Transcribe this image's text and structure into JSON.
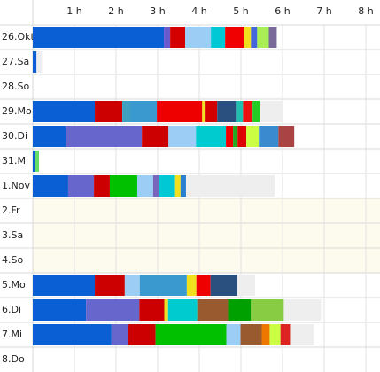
{
  "chart_data": {
    "type": "stacked-timeline",
    "xlim": [
      0,
      8.34
    ],
    "xticks": [
      {
        "value": 1,
        "label": "1 h"
      },
      {
        "value": 2,
        "label": "2 h"
      },
      {
        "value": 3,
        "label": "3 h"
      },
      {
        "value": 4,
        "label": "4 h"
      },
      {
        "value": 5,
        "label": "5 h"
      },
      {
        "value": 6,
        "label": "6 h"
      },
      {
        "value": 7,
        "label": "7 h"
      },
      {
        "value": 8,
        "label": "8 h"
      }
    ],
    "grid": true,
    "rows": [
      {
        "label": "26.Okt",
        "highlight": true,
        "segments": [
          {
            "value": 3.15,
            "color": "#0a5fd4"
          },
          {
            "value": 0.15,
            "color": "#6a5acd"
          },
          {
            "value": 0.36,
            "color": "#d40000"
          },
          {
            "value": 0.62,
            "color": "#9ccdf5"
          },
          {
            "value": 0.34,
            "color": "#00c8d4"
          },
          {
            "value": 0.45,
            "color": "#f00000"
          },
          {
            "value": 0.17,
            "color": "#f0e020"
          },
          {
            "value": 0.15,
            "color": "#4466dd"
          },
          {
            "value": 0.28,
            "color": "#aaee55"
          },
          {
            "value": 0.19,
            "color": "#7a6a9a"
          }
        ]
      },
      {
        "label": "27.Sa",
        "segments": [
          {
            "value": 0.09,
            "color": "#0a5fd4"
          },
          {
            "value": 0.13,
            "color": "#eeeeee"
          }
        ]
      },
      {
        "label": "28.So",
        "segments": []
      },
      {
        "label": "29.Mo",
        "segments": [
          {
            "value": 1.49,
            "color": "#0a5fd4"
          },
          {
            "value": 0.66,
            "color": "#cc0000"
          },
          {
            "value": 0.19,
            "color": "#40a0c0"
          },
          {
            "value": 0.64,
            "color": "#3a9ad0"
          },
          {
            "value": 1.09,
            "color": "#ee0000"
          },
          {
            "value": 0.06,
            "color": "#f0e020"
          },
          {
            "value": 0.3,
            "color": "#d40000"
          },
          {
            "value": 0.45,
            "color": "#2a5080"
          },
          {
            "value": 0.17,
            "color": "#20c0b0"
          },
          {
            "value": 0.23,
            "color": "#ee1010"
          },
          {
            "value": 0.17,
            "color": "#22cc22"
          },
          {
            "value": 0.57,
            "color": "#eeeeee"
          }
        ]
      },
      {
        "label": "30.Di",
        "segments": [
          {
            "value": 0.79,
            "color": "#0a5fd4"
          },
          {
            "value": 1.83,
            "color": "#6666cc"
          },
          {
            "value": 0.64,
            "color": "#cc0000"
          },
          {
            "value": 0.66,
            "color": "#9ccdf5"
          },
          {
            "value": 0.72,
            "color": "#00ccd0"
          },
          {
            "value": 0.17,
            "color": "#ee0000"
          },
          {
            "value": 0.11,
            "color": "#22aa22"
          },
          {
            "value": 0.21,
            "color": "#dd0000"
          },
          {
            "value": 0.3,
            "color": "#ccff44"
          },
          {
            "value": 0.47,
            "color": "#3a8ad0"
          },
          {
            "value": 0.38,
            "color": "#aa4444"
          }
        ]
      },
      {
        "label": "31.Mi",
        "segments": [
          {
            "value": 0.06,
            "color": "#0a5fd4"
          },
          {
            "value": 0.09,
            "color": "#66dd66"
          }
        ]
      },
      {
        "label": "1.Nov",
        "highlight": true,
        "segments": [
          {
            "value": 0.85,
            "color": "#0a5fd4"
          },
          {
            "value": 0.62,
            "color": "#6666cc"
          },
          {
            "value": 0.38,
            "color": "#cc0000"
          },
          {
            "value": 0.66,
            "color": "#00c000"
          },
          {
            "value": 0.38,
            "color": "#9ccdf5"
          },
          {
            "value": 0.15,
            "color": "#7766bb"
          },
          {
            "value": 0.38,
            "color": "#00c8d4"
          },
          {
            "value": 0.13,
            "color": "#f0e020"
          },
          {
            "value": 0.13,
            "color": "#2a80d0"
          },
          {
            "value": 2.13,
            "color": "#eeeeee"
          }
        ]
      },
      {
        "label": "2.Fr",
        "holiday": true,
        "segments": []
      },
      {
        "label": "3.Sa",
        "holiday": true,
        "segments": []
      },
      {
        "label": "4.So",
        "holiday": true,
        "segments": []
      },
      {
        "label": "5.Mo",
        "segments": [
          {
            "value": 1.49,
            "color": "#0a5fd4"
          },
          {
            "value": 0.72,
            "color": "#cc0000"
          },
          {
            "value": 0.36,
            "color": "#9ccdf5"
          },
          {
            "value": 1.13,
            "color": "#3a9ad0"
          },
          {
            "value": 0.23,
            "color": "#f0e020"
          },
          {
            "value": 0.34,
            "color": "#ee0000"
          },
          {
            "value": 0.64,
            "color": "#2a5080"
          },
          {
            "value": 0.43,
            "color": "#eeeeee"
          }
        ]
      },
      {
        "label": "6.Di",
        "segments": [
          {
            "value": 1.28,
            "color": "#0a5fd4"
          },
          {
            "value": 1.28,
            "color": "#6666cc"
          },
          {
            "value": 0.6,
            "color": "#cc0000"
          },
          {
            "value": 0.09,
            "color": "#f0e020"
          },
          {
            "value": 0.7,
            "color": "#00ccd0"
          },
          {
            "value": 0.74,
            "color": "#9a5a30"
          },
          {
            "value": 0.55,
            "color": "#00a000"
          },
          {
            "value": 0.79,
            "color": "#88cc44"
          },
          {
            "value": 0.89,
            "color": "#eeeeee"
          }
        ]
      },
      {
        "label": "7.Mi",
        "segments": [
          {
            "value": 1.89,
            "color": "#0a5fd4"
          },
          {
            "value": 0.4,
            "color": "#6666cc"
          },
          {
            "value": 0.66,
            "color": "#cc0000"
          },
          {
            "value": 1.7,
            "color": "#00c000"
          },
          {
            "value": 0.34,
            "color": "#9ccdf5"
          },
          {
            "value": 0.51,
            "color": "#9a5a30"
          },
          {
            "value": 0.19,
            "color": "#ee7700"
          },
          {
            "value": 0.26,
            "color": "#ccff44"
          },
          {
            "value": 0.23,
            "color": "#dd2222"
          },
          {
            "value": 0.57,
            "color": "#eeeeee"
          }
        ]
      },
      {
        "label": "8.Do",
        "segments": []
      }
    ]
  }
}
